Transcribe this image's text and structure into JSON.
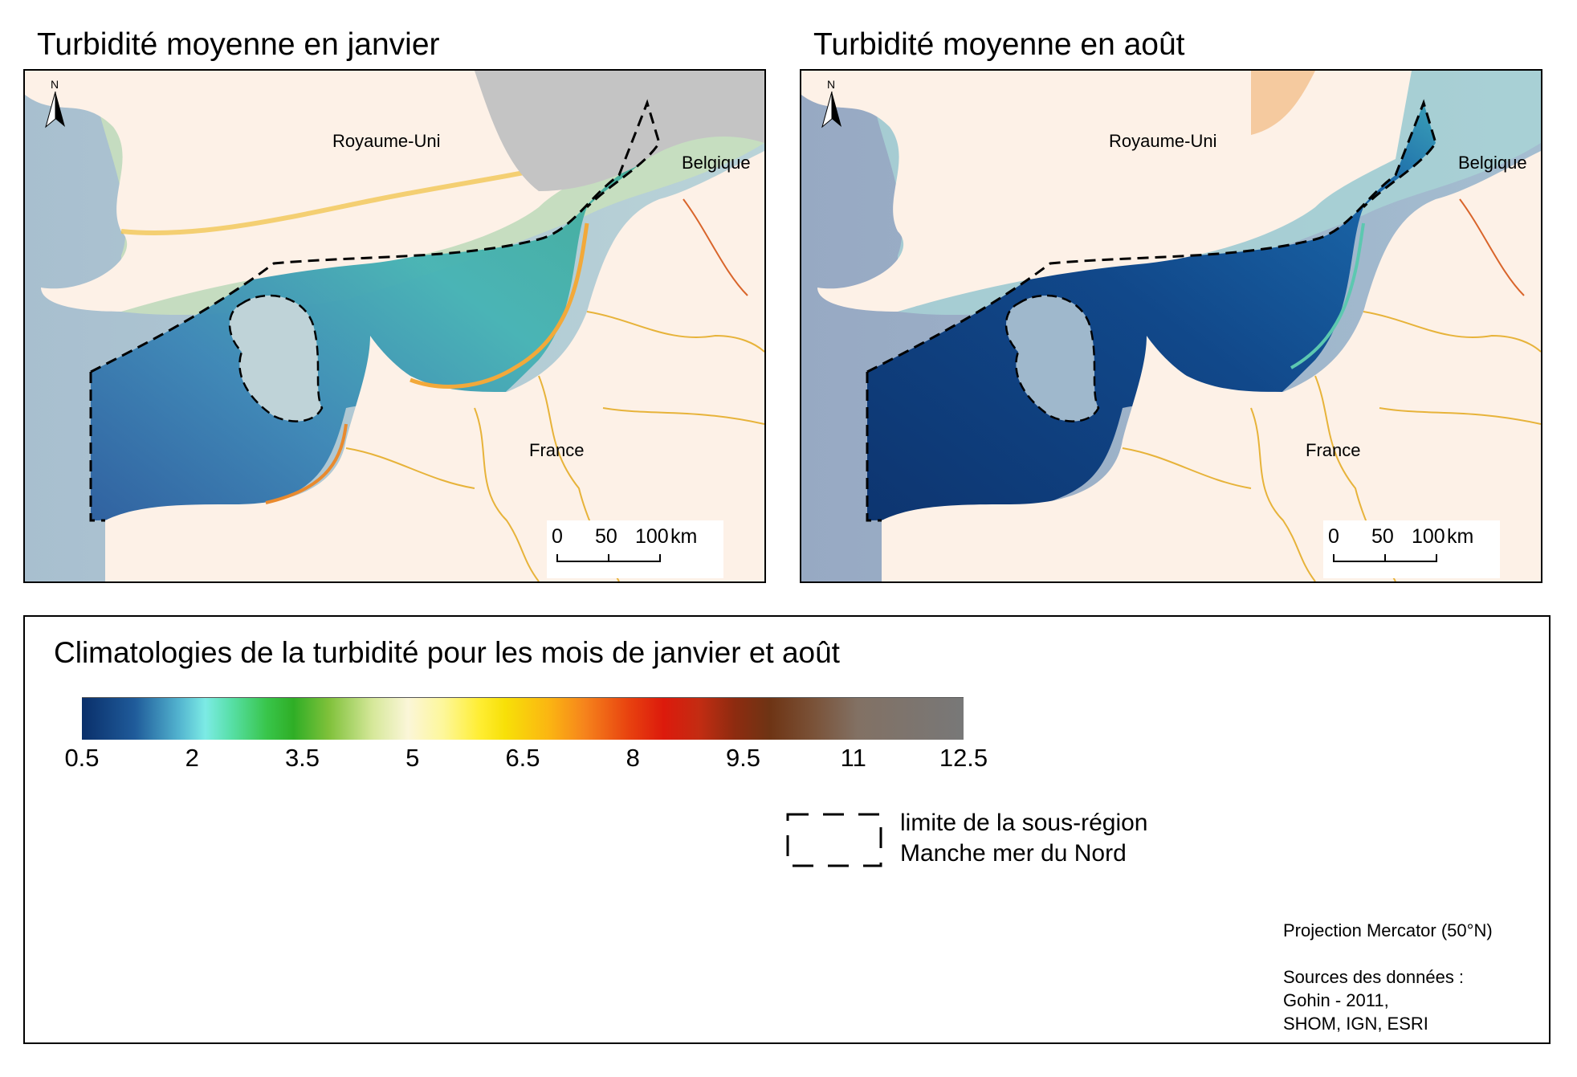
{
  "maps": [
    {
      "title": "Turbidité moyenne en janvier",
      "labels": {
        "uk": "Royaume-Uni",
        "belgium": "Belgique",
        "france": "France"
      },
      "north": "N",
      "scale": {
        "ticks": [
          "0",
          "50",
          "100"
        ],
        "unit": "km"
      }
    },
    {
      "title": "Turbidité moyenne en août",
      "labels": {
        "uk": "Royaume-Uni",
        "belgium": "Belgique",
        "france": "France"
      },
      "north": "N",
      "scale": {
        "ticks": [
          "0",
          "50",
          "100"
        ],
        "unit": "km"
      }
    }
  ],
  "legend": {
    "title": "Climatologies de la turbidité pour les mois de janvier et août",
    "colorbar_labels": [
      "0.5",
      "2",
      "3.5",
      "5",
      "6.5",
      "8",
      "9.5",
      "11",
      "12.5"
    ],
    "colorbar_range": [
      0.5,
      12.5
    ],
    "colors": {
      "low": "#0a2f6a",
      "cyan": "#7cebe5",
      "green": "#2fae26",
      "yellow": "#ffee35",
      "red": "#dc1a0c",
      "brown": "#6e3414",
      "high": "#787878"
    },
    "boundary_label_line1": "limite de la sous-région",
    "boundary_label_line2": "Manche mer du Nord",
    "projection": "Projection Mercator (50°N)",
    "sources_line1": "Sources des données :",
    "sources_line2": "Gohin - 2011,",
    "sources_line3": "SHOM, IGN, ESRI"
  }
}
